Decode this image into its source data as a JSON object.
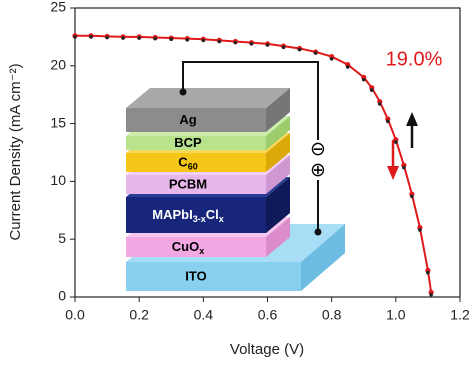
{
  "chart_data": {
    "type": "line",
    "xlabel": "Voltage (V)",
    "ylabel": "Current Density (mA cm⁻²)",
    "xlim": [
      0,
      1.2
    ],
    "ylim": [
      0,
      25
    ],
    "xticks": [
      {
        "value": 0,
        "label": "0.0"
      },
      0.2,
      0.4,
      0.6,
      0.8,
      {
        "value": 1,
        "label": "1.0"
      },
      1.2
    ],
    "yticks": [
      0,
      5,
      10,
      15,
      20,
      25
    ],
    "x": [
      0,
      0.05,
      0.1,
      0.15,
      0.2,
      0.25,
      0.3,
      0.35,
      0.4,
      0.45,
      0.5,
      0.55,
      0.6,
      0.65,
      0.7,
      0.75,
      0.8,
      0.85,
      0.9,
      0.925,
      0.95,
      0.975,
      1.0,
      1.025,
      1.05,
      1.075,
      1.1,
      1.11
    ],
    "series": [
      {
        "color": "#e0191b",
        "values": [
          22.6,
          22.6,
          22.55,
          22.5,
          22.5,
          22.45,
          22.4,
          22.35,
          22.3,
          22.2,
          22.1,
          22.0,
          21.9,
          21.7,
          21.5,
          21.2,
          20.8,
          20.1,
          19.0,
          18.1,
          16.9,
          15.4,
          13.6,
          11.4,
          8.9,
          6.0,
          2.3,
          0.4
        ]
      },
      {
        "color": "#222222",
        "values": [
          22.5,
          22.5,
          22.45,
          22.4,
          22.4,
          22.35,
          22.3,
          22.25,
          22.2,
          22.1,
          22.0,
          21.9,
          21.8,
          21.6,
          21.4,
          21.1,
          20.6,
          19.9,
          18.8,
          17.9,
          16.7,
          15.2,
          13.4,
          11.2,
          8.7,
          5.8,
          2.1,
          0.2
        ]
      }
    ],
    "annotation": "19.0%",
    "inset": {
      "layers": [
        {
          "parts": [
            "Ag"
          ],
          "front": "#8c8c8c",
          "top": "#a9a9a9",
          "side": "#767676",
          "text_color": "#000000"
        },
        {
          "parts": [
            "BCP"
          ],
          "front": "#b9e28c",
          "top": "#cdeeaa",
          "side": "#9ccc6c",
          "text_color": "#000000"
        },
        {
          "parts": [
            "C",
            "60"
          ],
          "front": "#f5c518",
          "top": "#f8d85a",
          "side": "#dba90a",
          "text_color": "#000000"
        },
        {
          "parts": [
            "PCBM"
          ],
          "front": "#e7b6ea",
          "top": "#f0cdf2",
          "side": "#cf98d3",
          "text_color": "#000000"
        },
        {
          "parts": [
            "MAPbI",
            "3-x",
            "Cl",
            "x"
          ],
          "front": "#17267a",
          "top": "#2b3c96",
          "side": "#0f1a5a",
          "text_color": "#ffffff"
        },
        {
          "parts": [
            "CuO",
            "x"
          ],
          "front": "#f2a9e3",
          "top": "#f7c6ee",
          "side": "#dc8ccb",
          "text_color": "#000000"
        },
        {
          "parts": [
            "ITO"
          ],
          "front": "#89d0f0",
          "top": "#a8def5",
          "side": "#6dbde2",
          "text_color": "#000000"
        }
      ],
      "minus": "⊖",
      "plus": "⊕"
    }
  }
}
